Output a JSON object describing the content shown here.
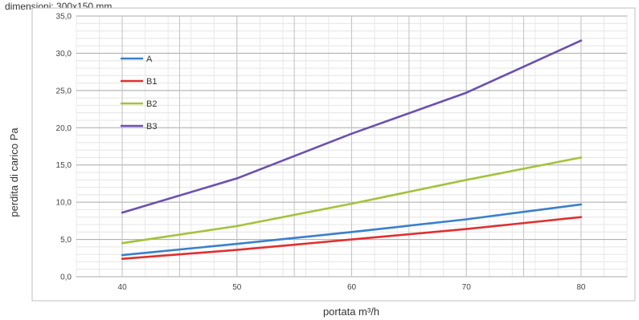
{
  "caption": "dimensioni: 300x150 mm",
  "chart_data": {
    "type": "line",
    "title": "",
    "xlabel": "portata m³/h",
    "ylabel": "perdita di carico Pa",
    "categories": [
      "40",
      "50",
      "60",
      "70",
      "80"
    ],
    "x": [
      40,
      50,
      60,
      70,
      80
    ],
    "xlim": [
      36,
      84
    ],
    "ylim": [
      0,
      35
    ],
    "ytick_labels": [
      "0,0",
      "5,0",
      "10,0",
      "15,0",
      "20,0",
      "25,0",
      "30,0",
      "35,0"
    ],
    "ytick_values": [
      0,
      5,
      10,
      15,
      20,
      25,
      30,
      35
    ],
    "grid": true,
    "legend_position": "top-left",
    "series": [
      {
        "name": "A",
        "color": "#3a7fcc",
        "values": [
          2.9,
          4.4,
          6.0,
          7.7,
          9.7
        ]
      },
      {
        "name": "B1",
        "color": "#e03030",
        "values": [
          2.4,
          3.6,
          5.0,
          6.4,
          8.0
        ]
      },
      {
        "name": "B2",
        "color": "#a4c23c",
        "values": [
          4.5,
          6.8,
          9.8,
          13.0,
          16.0
        ]
      },
      {
        "name": "B3",
        "color": "#6a50b0",
        "values": [
          8.6,
          13.2,
          19.2,
          24.7,
          31.7
        ]
      }
    ]
  }
}
